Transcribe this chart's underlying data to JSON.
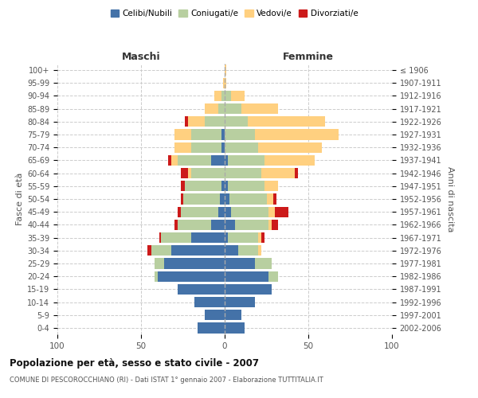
{
  "age_groups": [
    "0-4",
    "5-9",
    "10-14",
    "15-19",
    "20-24",
    "25-29",
    "30-34",
    "35-39",
    "40-44",
    "45-49",
    "50-54",
    "55-59",
    "60-64",
    "65-69",
    "70-74",
    "75-79",
    "80-84",
    "85-89",
    "90-94",
    "95-99",
    "100+"
  ],
  "birth_years": [
    "2002-2006",
    "1997-2001",
    "1992-1996",
    "1987-1991",
    "1982-1986",
    "1977-1981",
    "1972-1976",
    "1967-1971",
    "1962-1966",
    "1957-1961",
    "1952-1956",
    "1947-1951",
    "1942-1946",
    "1937-1941",
    "1932-1936",
    "1927-1931",
    "1922-1926",
    "1917-1921",
    "1912-1916",
    "1907-1911",
    "≤ 1906"
  ],
  "maschi": {
    "celibi": [
      16,
      12,
      18,
      28,
      40,
      36,
      32,
      20,
      8,
      4,
      3,
      2,
      0,
      8,
      2,
      2,
      0,
      0,
      0,
      0,
      0
    ],
    "coniugati": [
      0,
      0,
      0,
      0,
      2,
      6,
      12,
      18,
      20,
      22,
      22,
      22,
      20,
      20,
      18,
      18,
      12,
      4,
      2,
      0,
      0
    ],
    "vedovi": [
      0,
      0,
      0,
      0,
      0,
      0,
      0,
      0,
      0,
      0,
      0,
      0,
      2,
      4,
      10,
      10,
      10,
      8,
      4,
      1,
      0
    ],
    "divorziati": [
      0,
      0,
      0,
      0,
      0,
      0,
      2,
      1,
      2,
      2,
      1,
      2,
      4,
      2,
      0,
      0,
      2,
      0,
      0,
      0,
      0
    ]
  },
  "femmine": {
    "nubili": [
      12,
      10,
      18,
      28,
      26,
      18,
      8,
      2,
      6,
      4,
      3,
      2,
      0,
      2,
      0,
      0,
      0,
      0,
      0,
      0,
      0
    ],
    "coniugate": [
      0,
      0,
      0,
      0,
      6,
      10,
      12,
      18,
      20,
      22,
      22,
      22,
      22,
      22,
      20,
      18,
      14,
      10,
      4,
      0,
      0
    ],
    "vedove": [
      0,
      0,
      0,
      0,
      0,
      0,
      2,
      2,
      2,
      4,
      4,
      8,
      20,
      30,
      38,
      50,
      46,
      22,
      8,
      1,
      1
    ],
    "divorziate": [
      0,
      0,
      0,
      0,
      0,
      0,
      0,
      2,
      4,
      8,
      2,
      0,
      2,
      0,
      0,
      0,
      0,
      0,
      0,
      0,
      0
    ]
  },
  "colors": {
    "celibi_nubili": "#4472a8",
    "coniugati": "#b8cfa0",
    "vedovi": "#ffd080",
    "divorziati": "#cc1a1a"
  },
  "xlim": 100,
  "title": "Popolazione per età, sesso e stato civile - 2007",
  "subtitle": "COMUNE DI PESCOROCCHIANO (RI) - Dati ISTAT 1° gennaio 2007 - Elaborazione TUTTITALIA.IT",
  "ylabel_left": "Fasce di età",
  "ylabel_right": "Anni di nascita",
  "legend_labels": [
    "Celibi/Nubili",
    "Coniugati/e",
    "Vedovi/e",
    "Divorziati/e"
  ]
}
